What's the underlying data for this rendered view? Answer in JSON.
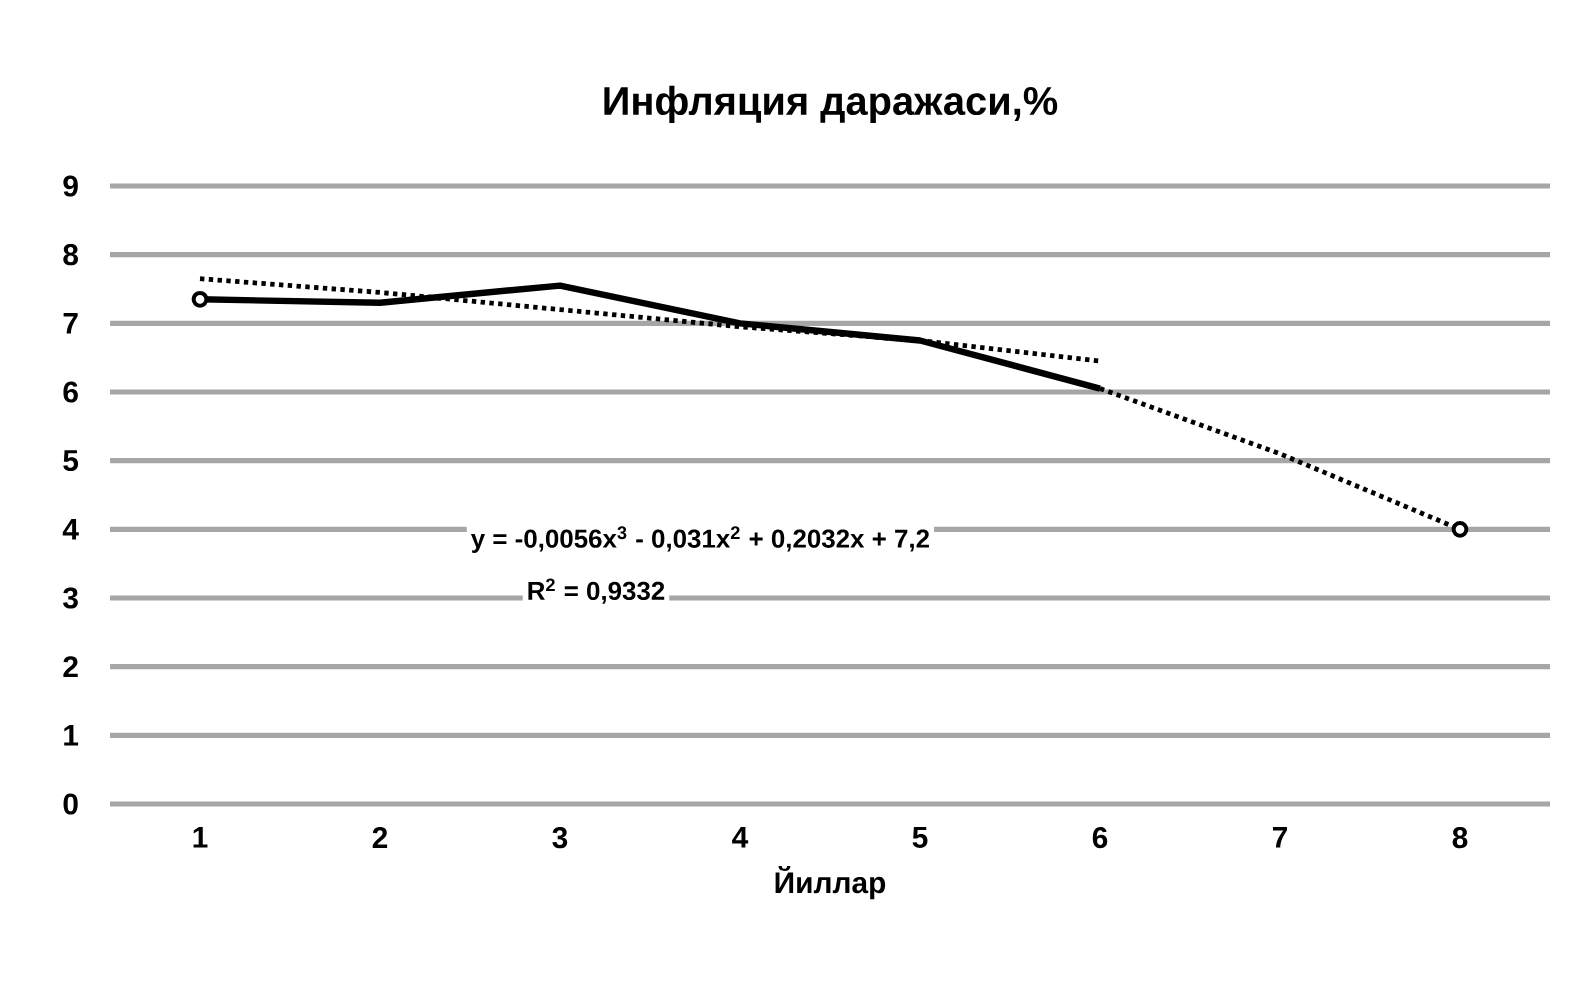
{
  "chart_data": {
    "type": "line",
    "title": "Инфляция даражаси,%",
    "xlabel": "Йиллар",
    "categories": [
      "1",
      "2",
      "3",
      "4",
      "5",
      "6",
      "7",
      "8"
    ],
    "series": [
      {
        "color": "#000000",
        "line_style": "solid",
        "marker": "none",
        "values": [
          7.35,
          7.3,
          7.55,
          7.0,
          6.75,
          6.05,
          null,
          null
        ]
      },
      {
        "color": "#000000",
        "line_style": "dotted",
        "marker": "none",
        "values": [
          7.65,
          7.45,
          7.2,
          6.95,
          6.75,
          6.45,
          null,
          null
        ]
      },
      {
        "color": "#000000",
        "line_style": "dotted",
        "marker": "none",
        "values": [
          null,
          null,
          null,
          null,
          null,
          6.05,
          5.1,
          4.0
        ]
      },
      {
        "type": "scatter",
        "color": "#000000",
        "marker": "circle",
        "values": [
          7.35,
          null,
          null,
          null,
          null,
          null,
          null,
          4.0
        ]
      }
    ],
    "annotations": [
      "y = -0,0056x$^{3}$ - 0,031x$^{2}$ + 0,2032x + 7,2",
      "R$^{2}$ = 0,9332"
    ],
    "ylim": [
      0,
      9
    ],
    "yticks": [
      0,
      1,
      2,
      3,
      4,
      5,
      6,
      7,
      8,
      9
    ],
    "grid": "y",
    "legend": false
  }
}
